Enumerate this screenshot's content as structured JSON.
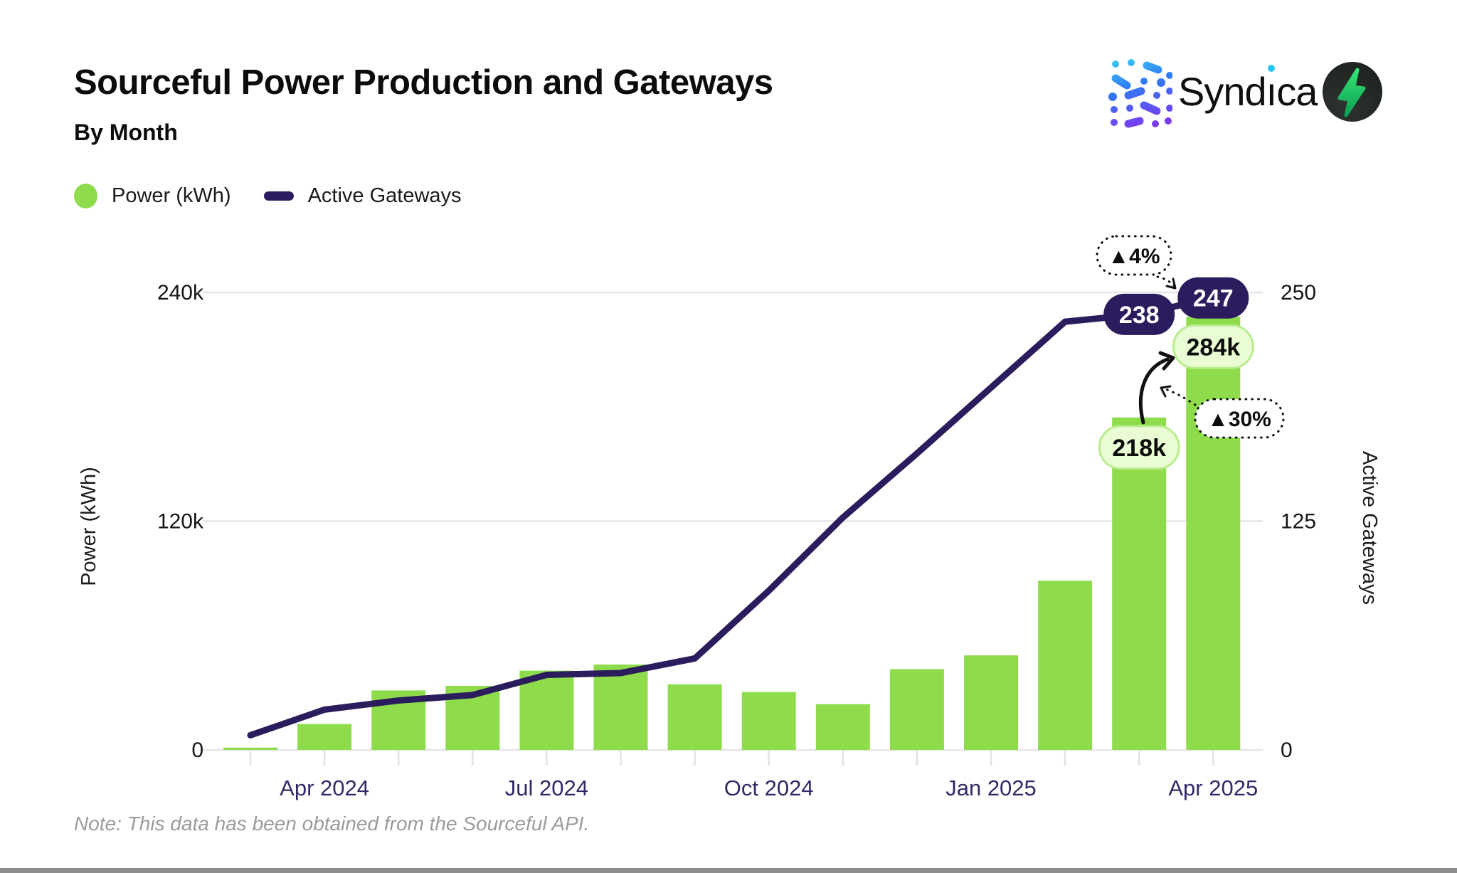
{
  "header": {
    "title": "Sourceful Power Production and Gateways",
    "subtitle": "By Month"
  },
  "logo": {
    "brand": "Syndica",
    "brand_parts": {
      "pre": "Synd",
      "dotless_i": "ı",
      "post": "ca"
    },
    "mark": "syndica-dots-icon",
    "bolt": "lightning-bolt-icon"
  },
  "legend": [
    {
      "label": "Power (kWh)",
      "swatch": "circle",
      "color": "#8edc4c"
    },
    {
      "label": "Active Gateways",
      "swatch": "dash",
      "color": "#2b1c5d"
    }
  ],
  "chart_data": {
    "type": "bar+line",
    "title": "Sourceful Power Production and Gateways",
    "subtitle": "By Month",
    "categories": [
      "Mar 2024",
      "Apr 2024",
      "May 2024",
      "Jun 2024",
      "Jul 2024",
      "Aug 2024",
      "Sep 2024",
      "Oct 2024",
      "Nov 2024",
      "Dec 2024",
      "Jan 2025",
      "Feb 2025",
      "Mar 2025",
      "Apr 2025"
    ],
    "series": [
      {
        "name": "Power (kWh)",
        "type": "bar",
        "axis": "left",
        "unit": "kWh",
        "values": [
          1500,
          17000,
          39000,
          42000,
          52000,
          56000,
          43000,
          38000,
          30000,
          53000,
          62000,
          111000,
          218000,
          284000
        ]
      },
      {
        "name": "Active Gateways",
        "type": "line",
        "axis": "right",
        "values": [
          8,
          22,
          27,
          30,
          41,
          42,
          50,
          87,
          127,
          162,
          198,
          234,
          238,
          247
        ]
      }
    ],
    "left_axis": {
      "label": "Power (kWh)",
      "ticks": [
        "0",
        "120k",
        "240k"
      ],
      "ylim": [
        0,
        240000
      ]
    },
    "right_axis": {
      "label": "Active Gateways",
      "ticks": [
        "0",
        "125",
        "250"
      ],
      "ylim": [
        0,
        250
      ]
    },
    "x_ticks": [
      "Apr 2024",
      "Jul 2024",
      "Oct 2024",
      "Jan 2025",
      "Apr 2025"
    ],
    "grid": "horizontal-only",
    "legend_position": "top-left",
    "annotations": {
      "line_labels": [
        {
          "month": "Mar 2025",
          "text": "238"
        },
        {
          "month": "Apr 2025",
          "text": "247"
        }
      ],
      "bar_labels": [
        {
          "month": "Mar 2025",
          "text": "218k"
        },
        {
          "month": "Apr 2025",
          "text": "284k"
        }
      ],
      "callouts": [
        {
          "text": "▲4%",
          "refers_to": "Active Gateways Mar→Apr 2025"
        },
        {
          "text": "▲30%",
          "refers_to": "Power (kWh) Mar→Apr 2025"
        }
      ]
    },
    "colors": {
      "bar": "#8edc4c",
      "line": "#2b1c5d",
      "pill_dark_bg": "#2b1c5d",
      "pill_dark_text": "#ffffff",
      "pill_green_bg": "#eafcd4",
      "pill_green_border": "#b9ec8c",
      "gridline": "#e5e5ea",
      "x_label": "#312a68",
      "tick_label": "#161616"
    }
  },
  "note": "Note: This data has been obtained from the Sourceful API."
}
